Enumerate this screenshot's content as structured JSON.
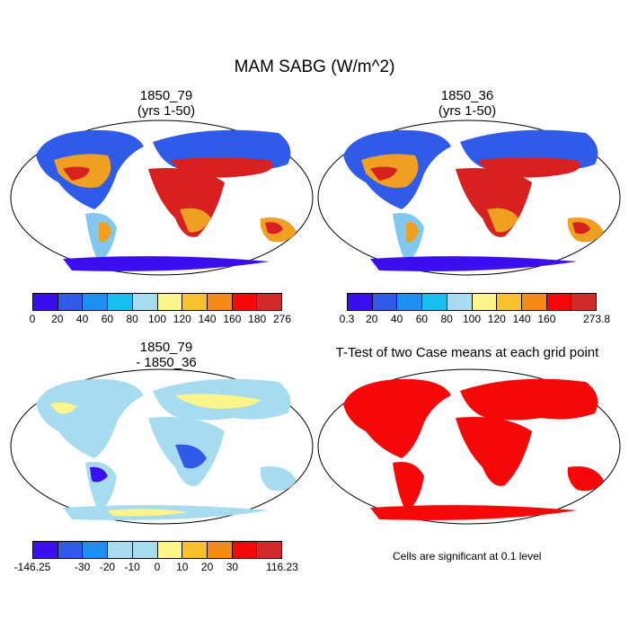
{
  "title": "MAM SABG (W/m^2)",
  "panels": [
    {
      "line1": "1850_79",
      "line2": "(yrs 1-50)"
    },
    {
      "line1": "1850_36",
      "line2": "(yrs 1-50)"
    },
    {
      "line1": "1850_79",
      "line2": "- 1850_36"
    },
    {
      "line1": "T-Test of two Case means at each grid point",
      "line2": ""
    }
  ],
  "colorbars": [
    {
      "colors": [
        "#3a0ff0",
        "#2f5be8",
        "#1f8ef2",
        "#17bff0",
        "#a7dcf0",
        "#fdf58a",
        "#fbc02d",
        "#f58a17",
        "#f70808",
        "#d12a2a"
      ],
      "labels": [
        "0",
        "20",
        "40",
        "60",
        "80",
        "100",
        "120",
        "140",
        "160",
        "180",
        "276"
      ]
    },
    {
      "colors": [
        "#3a0ff0",
        "#2f5be8",
        "#1f8ef2",
        "#17bff0",
        "#a7dcf0",
        "#fdf58a",
        "#fbc02d",
        "#f58a17",
        "#f70808",
        "#d12a2a"
      ],
      "labels": [
        "0.3",
        "20",
        "40",
        "60",
        "80",
        "100",
        "120",
        "140",
        "160",
        "",
        "273.8"
      ]
    },
    {
      "colors": [
        "#3a0ff0",
        "#2f5be8",
        "#1f8ef2",
        "#a7dcf0",
        "#a7dcf0",
        "#fdf58a",
        "#fbc02d",
        "#f58a17",
        "#f70808",
        "#d12a2a"
      ],
      "labels": [
        "-146.25",
        "",
        "-30",
        "-20",
        "-10",
        "0",
        "10",
        "20",
        "30",
        "",
        "116.23"
      ]
    }
  ],
  "note": "Cells are significant at 0.1 level",
  "colors": {
    "land_hot": "#d82020",
    "land_warm": "#f0a020",
    "land_mid": "#80c8f0",
    "land_cool": "#2f5be8",
    "ice": "#3a0ff0",
    "sig": "#f70808"
  }
}
